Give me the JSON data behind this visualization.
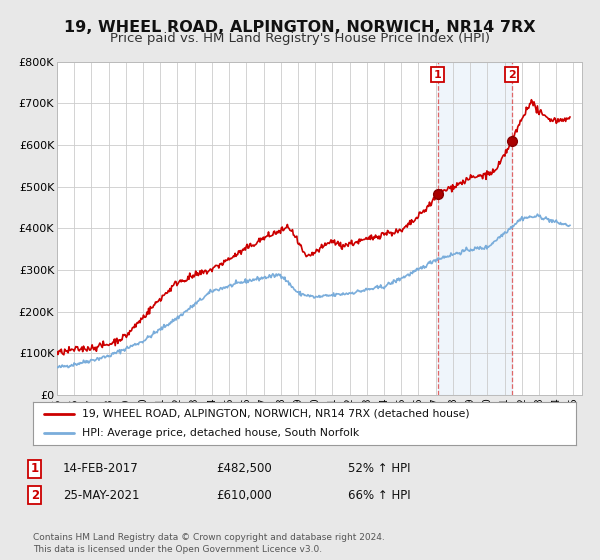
{
  "title": "19, WHEEL ROAD, ALPINGTON, NORWICH, NR14 7RX",
  "subtitle": "Price paid vs. HM Land Registry's House Price Index (HPI)",
  "title_fontsize": 11.5,
  "subtitle_fontsize": 9.5,
  "bg_color": "#e8e8e8",
  "plot_bg_color": "#ffffff",
  "grid_color": "#cccccc",
  "red_color": "#cc0000",
  "blue_color": "#7aaddb",
  "marker1_date": 2017.12,
  "marker1_value": 482500,
  "marker2_date": 2021.42,
  "marker2_value": 610000,
  "vline1_date": 2017.12,
  "vline2_date": 2021.42,
  "legend_line1": "19, WHEEL ROAD, ALPINGTON, NORWICH, NR14 7RX (detached house)",
  "legend_line2": "HPI: Average price, detached house, South Norfolk",
  "annotation1_date": "14-FEB-2017",
  "annotation1_price": "£482,500",
  "annotation1_hpi": "52% ↑ HPI",
  "annotation2_date": "25-MAY-2021",
  "annotation2_price": "£610,000",
  "annotation2_hpi": "66% ↑ HPI",
  "footer": "Contains HM Land Registry data © Crown copyright and database right 2024.\nThis data is licensed under the Open Government Licence v3.0.",
  "ylim": [
    0,
    800000
  ],
  "yticks": [
    0,
    100000,
    200000,
    300000,
    400000,
    500000,
    600000,
    700000,
    800000
  ],
  "ytick_labels": [
    "£0",
    "£100K",
    "£200K",
    "£300K",
    "£400K",
    "£500K",
    "£600K",
    "£700K",
    "£800K"
  ],
  "xlim_start": 1995.0,
  "xlim_end": 2025.5
}
